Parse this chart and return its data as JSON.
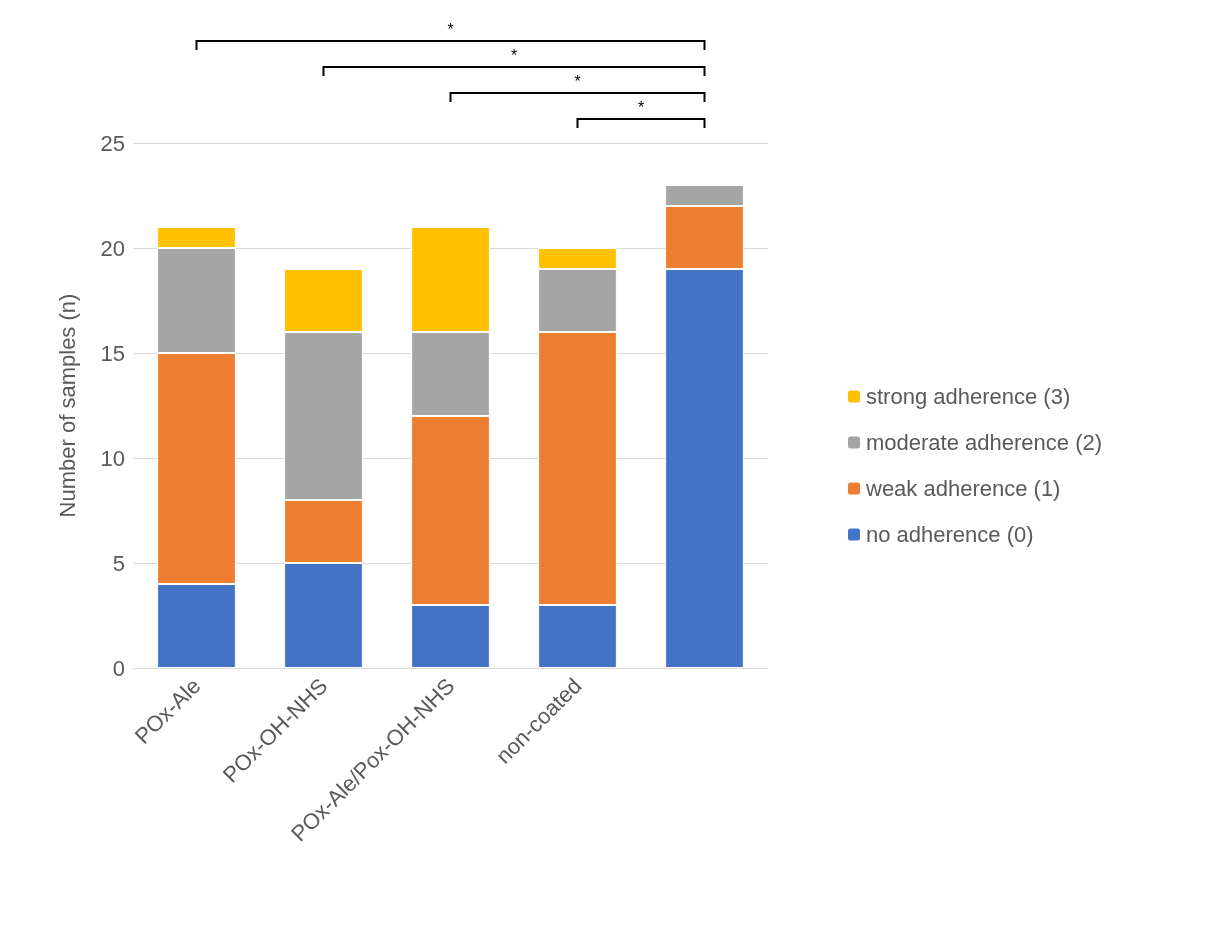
{
  "chart_data": {
    "type": "bar",
    "stacked": true,
    "ylabel": "Number of samples (n)",
    "categories": [
      "POx-Ale",
      "POx-OH-NHS",
      "POx-Ale/Pox-OH-NHS",
      "non-coated",
      null
    ],
    "series": [
      {
        "name": "no adherence (0)",
        "color": "#4472c4",
        "values": [
          4,
          5,
          3,
          3,
          19
        ]
      },
      {
        "name": "weak adherence (1)",
        "color": "#ed7d31",
        "values": [
          11,
          3,
          9,
          13,
          3
        ]
      },
      {
        "name": "moderate adherence (2)",
        "color": "#a5a5a5",
        "values": [
          5,
          8,
          4,
          3,
          1
        ]
      },
      {
        "name": "strong adherence (3)",
        "color": "#ffc000",
        "values": [
          1,
          3,
          5,
          1,
          0
        ]
      }
    ],
    "ylim": [
      0,
      25
    ],
    "yticks": [
      0,
      5,
      10,
      15,
      20,
      25
    ],
    "grid": "y",
    "legend": "right",
    "annotations": [
      "*",
      "*",
      "*",
      "*"
    ]
  }
}
